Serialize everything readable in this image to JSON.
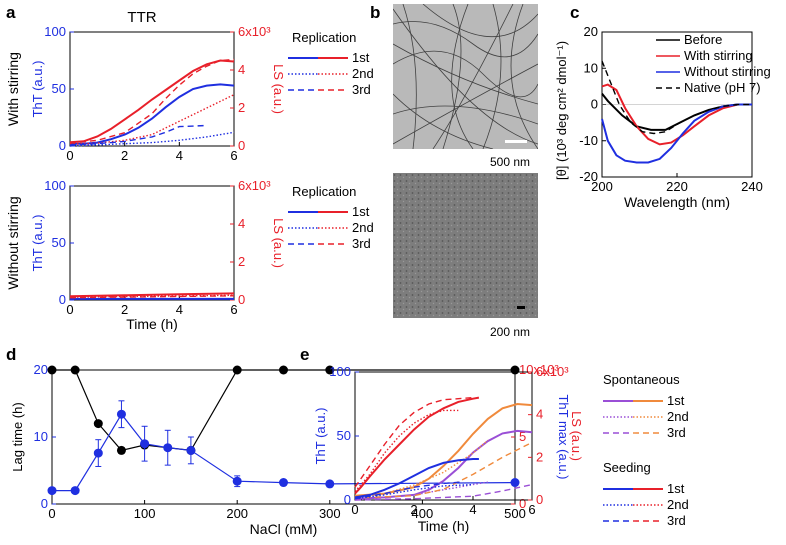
{
  "panel_labels": {
    "a": "a",
    "b": "b",
    "c": "c",
    "d": "d",
    "e": "e"
  },
  "colors": {
    "tht": "#1f2fe0",
    "ls": "#e8202a",
    "purple": "#9a4fd6",
    "orange": "#f08a3c",
    "black": "#000000"
  },
  "tem": {
    "top_scale": "500 nm",
    "bottom_scale": "200 nm"
  },
  "chart_data": [
    {
      "id": "a_top",
      "type": "line",
      "title": "TTR",
      "row_label": "With stirring",
      "xlabel": "",
      "ylabel": "ThT (a.u.)",
      "y2label": "LS (a.u.)",
      "xlim": [
        0,
        6
      ],
      "ylim": [
        0,
        100
      ],
      "y2lim": [
        0,
        6000
      ],
      "xticks": [
        "0",
        "2",
        "4",
        "6"
      ],
      "yticks": [
        "0",
        "50",
        "100"
      ],
      "y2ticks": [
        "0",
        "2",
        "4",
        "6x10³"
      ],
      "legend_title": "Replication",
      "legend": [
        "1st",
        "2nd",
        "3rd"
      ],
      "series": [
        {
          "name": "1st",
          "axis": "left",
          "style": "solid",
          "color": "#1f2fe0",
          "x": [
            0,
            0.5,
            1,
            1.5,
            2,
            2.5,
            3,
            3.5,
            4,
            4.5,
            5,
            5.5,
            6
          ],
          "y": [
            2,
            2,
            3,
            6,
            10,
            16,
            24,
            34,
            43,
            50,
            53,
            54,
            53
          ]
        },
        {
          "name": "1st",
          "axis": "right",
          "style": "solid",
          "color": "#e8202a",
          "x": [
            0,
            0.5,
            1,
            1.5,
            2,
            2.5,
            3,
            3.5,
            4,
            4.5,
            5,
            5.5,
            6
          ],
          "y": [
            200,
            250,
            500,
            900,
            1400,
            1900,
            2450,
            2950,
            3450,
            3950,
            4300,
            4500,
            4450
          ]
        },
        {
          "name": "2nd",
          "axis": "left",
          "style": "dotted",
          "color": "#1f2fe0",
          "x": [
            0,
            1,
            2,
            3,
            4,
            5,
            6
          ],
          "y": [
            0,
            1,
            2,
            3,
            5,
            8,
            12
          ]
        },
        {
          "name": "2nd",
          "axis": "right",
          "style": "dotted",
          "color": "#e8202a",
          "x": [
            0,
            1,
            2,
            3,
            4,
            5,
            6
          ],
          "y": [
            100,
            150,
            300,
            600,
            1300,
            2000,
            2700
          ]
        },
        {
          "name": "3rd",
          "axis": "left",
          "style": "dashed",
          "color": "#1f2fe0",
          "x": [
            0,
            1,
            2,
            3,
            3.5,
            4,
            5
          ],
          "y": [
            1,
            2,
            4,
            8,
            12,
            17,
            18
          ]
        },
        {
          "name": "3rd",
          "axis": "right",
          "style": "dashed",
          "color": "#e8202a",
          "x": [
            0,
            1,
            2,
            3,
            3.5,
            4,
            4.5,
            5,
            5.5,
            6
          ],
          "y": [
            150,
            300,
            700,
            1700,
            2500,
            3200,
            3800,
            4200,
            4500,
            4550
          ]
        }
      ]
    },
    {
      "id": "a_bottom",
      "type": "line",
      "row_label": "Without stirring",
      "xlabel": "Time (h)",
      "ylabel": "ThT (a.u.)",
      "y2label": "LS (a.u.)",
      "xlim": [
        0,
        6
      ],
      "ylim": [
        0,
        100
      ],
      "y2lim": [
        0,
        6000
      ],
      "xticks": [
        "0",
        "2",
        "4",
        "6"
      ],
      "yticks": [
        "0",
        "50",
        "100"
      ],
      "y2ticks": [
        "0",
        "2",
        "4",
        "6x10³"
      ],
      "legend_title": "Replication",
      "legend": [
        "1st",
        "2nd",
        "3rd"
      ],
      "series": [
        {
          "name": "1st",
          "axis": "left",
          "style": "solid",
          "color": "#1f2fe0",
          "x": [
            0,
            6
          ],
          "y": [
            1,
            1
          ]
        },
        {
          "name": "1st",
          "axis": "right",
          "style": "solid",
          "color": "#e8202a",
          "x": [
            0,
            2,
            4,
            6
          ],
          "y": [
            200,
            250,
            300,
            350
          ]
        },
        {
          "name": "2nd",
          "axis": "right",
          "style": "dotted",
          "color": "#e8202a",
          "x": [
            0,
            6
          ],
          "y": [
            150,
            250
          ]
        },
        {
          "name": "3rd",
          "axis": "right",
          "style": "dashed",
          "color": "#e8202a",
          "x": [
            0,
            6
          ],
          "y": [
            120,
            220
          ]
        }
      ]
    },
    {
      "id": "c",
      "type": "line",
      "xlabel": "Wavelength (nm)",
      "ylabel": "[θ] (10³ deg cm² dmol⁻¹)",
      "xlim": [
        198,
        250
      ],
      "ylim": [
        -20,
        20
      ],
      "xticks": [
        "200",
        "220",
        "240"
      ],
      "yticks": [
        "-20",
        "-10",
        "0",
        "10",
        "20"
      ],
      "legend": [
        "Before",
        "With stirring",
        "Without stirring",
        "Native (pH 7)"
      ],
      "series": [
        {
          "name": "Before",
          "style": "solid",
          "color": "#000000",
          "x": [
            198,
            200,
            205,
            210,
            215,
            220,
            225,
            230,
            235,
            240,
            245,
            250
          ],
          "y": [
            3,
            1,
            -3,
            -6,
            -7,
            -7,
            -5,
            -3,
            -1.5,
            -0.5,
            0,
            0
          ]
        },
        {
          "name": "With stirring",
          "style": "solid",
          "color": "#e8202a",
          "x": [
            198,
            200,
            203,
            206,
            210,
            214,
            218,
            222,
            226,
            230,
            235,
            240,
            245,
            250
          ],
          "y": [
            5,
            5.5,
            4,
            -1,
            -6,
            -9.5,
            -11,
            -10.5,
            -8.5,
            -6,
            -3,
            -1,
            0,
            0
          ]
        },
        {
          "name": "Without stirring",
          "style": "solid",
          "color": "#1f2fe0",
          "x": [
            198,
            200,
            203,
            206,
            210,
            214,
            218,
            222,
            226,
            230,
            235,
            240,
            245,
            250
          ],
          "y": [
            -4,
            -10,
            -14,
            -15.5,
            -16,
            -16,
            -15,
            -12,
            -8,
            -4.5,
            -2,
            -0.5,
            0,
            0
          ]
        },
        {
          "name": "Native (pH 7)",
          "style": "dashed",
          "color": "#000000",
          "x": [
            198,
            200,
            204,
            208,
            212,
            216,
            220,
            225,
            230,
            235,
            240,
            245,
            250
          ],
          "y": [
            12,
            8,
            0,
            -5,
            -7.5,
            -8,
            -7.5,
            -5,
            -3,
            -1.5,
            -0.5,
            0,
            0
          ]
        }
      ]
    },
    {
      "id": "d",
      "type": "scatter",
      "xlabel": "NaCl (mM)",
      "ylabel": "Lag time (h)",
      "y2label": "ThT max (a.u.)",
      "xlim": [
        0,
        500
      ],
      "ylim": [
        0,
        25
      ],
      "y2lim": [
        0,
        10000
      ],
      "xticks": [
        "0",
        "100",
        "200",
        "300",
        "400",
        "500"
      ],
      "yticks": [
        "0",
        "10",
        "20"
      ],
      "y2ticks": [
        "0",
        "5",
        "10x10³"
      ],
      "series": [
        {
          "name": "Lag time",
          "axis": "left",
          "color": "#000000",
          "x": [
            0,
            25,
            50,
            75,
            100,
            150,
            200,
            250,
            300,
            500
          ],
          "y": [
            25,
            25,
            15,
            10,
            11,
            10,
            25,
            25,
            25,
            25
          ]
        },
        {
          "name": "ThT max",
          "axis": "right",
          "color": "#1f2fe0",
          "x": [
            0,
            25,
            50,
            75,
            100,
            125,
            150,
            200,
            250,
            300,
            500
          ],
          "y": [
            1000,
            1000,
            3800,
            6700,
            4500,
            4200,
            4000,
            1700,
            1600,
            1500,
            1600
          ],
          "err": [
            0,
            0,
            1000,
            1000,
            1300,
            1300,
            1000,
            400,
            200,
            200,
            200
          ]
        }
      ]
    },
    {
      "id": "e",
      "type": "line",
      "xlabel": "Time (h)",
      "ylabel": "ThT (a.u.)",
      "y2label": "LS (a.u.)",
      "xlim": [
        0,
        6
      ],
      "ylim": [
        0,
        100
      ],
      "y2lim": [
        0,
        6000
      ],
      "xticks": [
        "0",
        "2",
        "4",
        "6"
      ],
      "yticks": [
        "0",
        "50",
        "100"
      ],
      "y2ticks": [
        "0",
        "2",
        "4",
        "6x10³"
      ],
      "legend_groups": [
        "Spontaneous",
        "Seeding"
      ],
      "legend": [
        "1st",
        "2nd",
        "3rd"
      ],
      "series": [
        {
          "name": "Spontaneous 1st",
          "axis": "left",
          "style": "solid",
          "color": "#9a4fd6",
          "x": [
            0,
            1,
            2,
            2.5,
            3,
            3.5,
            4,
            4.5,
            5,
            5.5,
            6
          ],
          "y": [
            1,
            2,
            4,
            8,
            15,
            25,
            37,
            46,
            52,
            54,
            53
          ]
        },
        {
          "name": "Spontaneous 1st",
          "axis": "right",
          "style": "solid",
          "color": "#f08a3c",
          "x": [
            0,
            1,
            2,
            2.5,
            3,
            3.5,
            4,
            4.5,
            5,
            5.5,
            6
          ],
          "y": [
            200,
            300,
            600,
            1000,
            1600,
            2300,
            3100,
            3800,
            4300,
            4500,
            4450
          ]
        },
        {
          "name": "Spontaneous 2nd",
          "axis": "left",
          "style": "dotted",
          "color": "#9a4fd6",
          "x": [
            0,
            1,
            2,
            3,
            4,
            4.5
          ],
          "y": [
            0,
            2,
            4,
            8,
            12,
            14
          ]
        },
        {
          "name": "Spontaneous 2nd",
          "axis": "right",
          "style": "dotted",
          "color": "#f08a3c",
          "x": [
            0,
            1,
            2,
            3,
            4,
            4.5
          ],
          "y": [
            100,
            300,
            700,
            1300,
            2200,
            2800
          ]
        },
        {
          "name": "Spontaneous 3rd",
          "axis": "left",
          "style": "dashed",
          "color": "#9a4fd6",
          "x": [
            0,
            2,
            4,
            5,
            6
          ],
          "y": [
            0,
            1,
            3,
            7,
            12
          ]
        },
        {
          "name": "Spontaneous 3rd",
          "axis": "right",
          "style": "dashed",
          "color": "#f08a3c",
          "x": [
            0,
            2,
            3,
            4,
            5,
            6
          ],
          "y": [
            100,
            200,
            500,
            1200,
            2000,
            2700
          ]
        },
        {
          "name": "Seeding 1st",
          "axis": "left",
          "style": "solid",
          "color": "#1f2fe0",
          "x": [
            0,
            0.5,
            1,
            1.5,
            2,
            2.5,
            3,
            3.5,
            4,
            4.2
          ],
          "y": [
            2,
            4,
            8,
            13,
            19,
            25,
            29,
            31,
            32,
            32
          ]
        },
        {
          "name": "Seeding 1st",
          "axis": "right",
          "style": "solid",
          "color": "#e8202a",
          "x": [
            0,
            0.2,
            0.5,
            1,
            1.5,
            2,
            2.5,
            3,
            3.5,
            4,
            4.2
          ],
          "y": [
            300,
            600,
            1100,
            1900,
            2600,
            3300,
            3900,
            4300,
            4600,
            4750,
            4800
          ]
        },
        {
          "name": "Seeding 2nd",
          "axis": "left",
          "style": "dotted",
          "color": "#1f2fe0",
          "x": [
            0,
            1,
            2,
            3,
            4
          ],
          "y": [
            1,
            4,
            8,
            11,
            12
          ]
        },
        {
          "name": "Seeding 2nd",
          "axis": "right",
          "style": "dotted",
          "color": "#e8202a",
          "x": [
            0,
            0.5,
            1,
            1.5,
            2,
            2.5,
            3,
            3.5
          ],
          "y": [
            400,
            1200,
            2200,
            3000,
            3600,
            4000,
            4200,
            4200
          ]
        },
        {
          "name": "Seeding 3rd",
          "axis": "left",
          "style": "dashed",
          "color": "#1f2fe0",
          "x": [
            0,
            1,
            2,
            3,
            3.6
          ],
          "y": [
            1,
            5,
            10,
            13,
            14
          ]
        },
        {
          "name": "Seeding 3rd",
          "axis": "right",
          "style": "dashed",
          "color": "#e8202a",
          "x": [
            0,
            0.5,
            1,
            1.5,
            2,
            2.5,
            3,
            3.5,
            4
          ],
          "y": [
            600,
            1600,
            2600,
            3500,
            4100,
            4500,
            4700,
            4750,
            4800
          ]
        }
      ]
    }
  ]
}
